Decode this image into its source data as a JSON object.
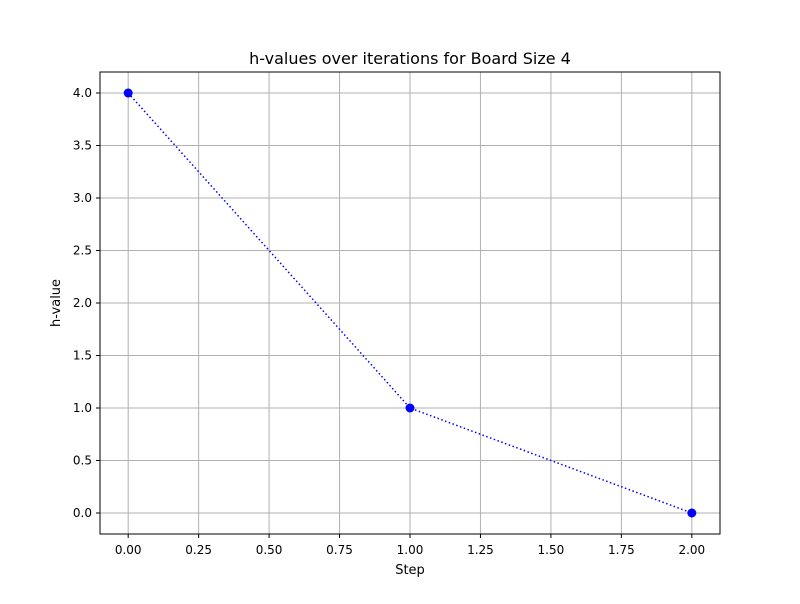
{
  "chart_data": {
    "type": "line",
    "title": "h-values over iterations for Board Size 4",
    "xlabel": "Step",
    "ylabel": "h-value",
    "x": [
      0,
      1,
      2
    ],
    "series": [
      {
        "values": [
          4,
          1,
          0
        ],
        "color": "#0000ff",
        "line_style": "dotted",
        "marker": "circle"
      }
    ],
    "xlim": [
      -0.1,
      2.1
    ],
    "ylim": [
      -0.2,
      4.2
    ],
    "x_ticks": [
      0,
      0.25,
      0.5,
      0.75,
      1,
      1.25,
      1.5,
      1.75,
      2
    ],
    "x_tick_labels": [
      "0.00",
      "0.25",
      "0.50",
      "0.75",
      "1.00",
      "1.25",
      "1.50",
      "1.75",
      "2.00"
    ],
    "y_ticks": [
      0,
      0.5,
      1,
      1.5,
      2,
      2.5,
      3,
      3.5,
      4
    ],
    "y_tick_labels": [
      "0.0",
      "0.5",
      "1.0",
      "1.5",
      "2.0",
      "2.5",
      "3.0",
      "3.5",
      "4.0"
    ],
    "grid": true,
    "grid_color": "#b0b0b0"
  }
}
